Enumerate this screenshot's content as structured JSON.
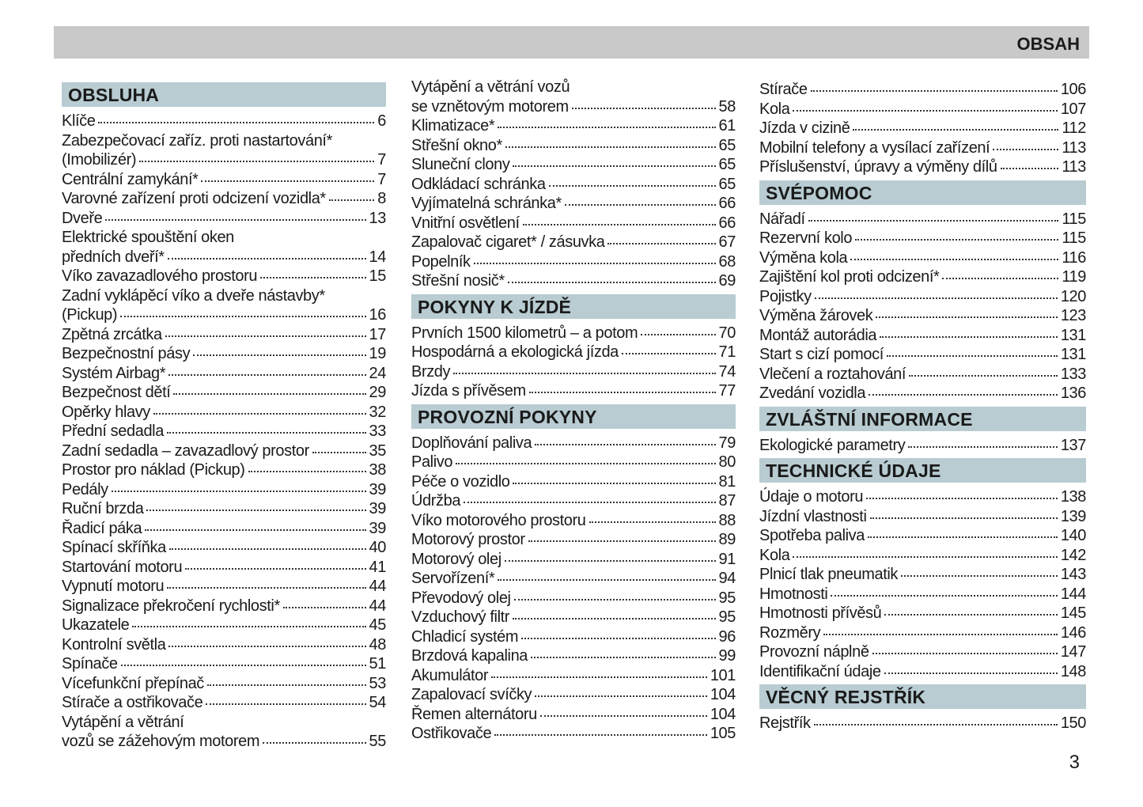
{
  "header": {
    "title": "OBSAH",
    "bar_color": "#c9c9c9",
    "heading_color": "#b8ccd2"
  },
  "page_number": "3",
  "columns": [
    [
      {
        "heading": "OBSLUHA",
        "items": [
          {
            "title": "Klíče",
            "page": "6"
          },
          {
            "pre": "Zabezpečovací zaříz. proti nastartování*",
            "title": "(Imobilizér)",
            "page": "7"
          },
          {
            "title": "Centrální zamykání*",
            "page": "7"
          },
          {
            "title": "Varovné zařízení proti odcizení vozidla*",
            "page": "8"
          },
          {
            "title": "Dveře",
            "page": "13"
          },
          {
            "pre": "Elektrické spouštění oken",
            "title": "předních dveří*",
            "page": "14"
          },
          {
            "title": "Víko zavazadlového prostoru",
            "page": "15"
          },
          {
            "pre": "Zadní vyklápěcí víko a dveře nástavby*",
            "title": "(Pickup)",
            "page": "16"
          },
          {
            "title": "Zpětná zrcátka",
            "page": "17"
          },
          {
            "title": "Bezpečnostní pásy",
            "page": "19"
          },
          {
            "title": "Systém Airbag*",
            "page": "24"
          },
          {
            "title": "Bezpečnost dětí",
            "page": "29"
          },
          {
            "title": "Opěrky hlavy",
            "page": "32"
          },
          {
            "title": "Přední sedadla",
            "page": "33"
          },
          {
            "title": "Zadní sedadla – zavazadlový prostor",
            "page": "35"
          },
          {
            "title": "Prostor pro náklad (Pickup)",
            "page": "38"
          },
          {
            "title": "Pedály",
            "page": "39"
          },
          {
            "title": "Ruční brzda",
            "page": "39"
          },
          {
            "title": "Řadicí páka",
            "page": "39"
          },
          {
            "title": "Spínací skříňka",
            "page": "40"
          },
          {
            "title": "Startování motoru",
            "page": "41"
          },
          {
            "title": "Vypnutí motoru",
            "page": "44"
          },
          {
            "title": "Signalizace překročení rychlosti*",
            "page": "44"
          },
          {
            "title": "Ukazatele",
            "page": "45"
          },
          {
            "title": "Kontrolní světla",
            "page": "48"
          },
          {
            "title": "Spínače",
            "page": "51"
          },
          {
            "title": "Vícefunkční přepínač",
            "page": "53"
          },
          {
            "title": "Stírače a ostřikovače",
            "page": "54"
          },
          {
            "pre": "Vytápění a větrání",
            "title": "vozů se zážehovým motorem",
            "page": "55"
          }
        ]
      }
    ],
    [
      {
        "items": [
          {
            "pre": "Vytápění a větrání vozů",
            "title": "se vznětovým motorem",
            "page": "58"
          },
          {
            "title": "Klimatizace*",
            "page": "61"
          },
          {
            "title": "Střešní okno*",
            "page": "65"
          },
          {
            "title": "Sluneční clony",
            "page": "65"
          },
          {
            "title": "Odkládací schránka",
            "page": "65"
          },
          {
            "title": "Vyjímatelná schránka*",
            "page": "66"
          },
          {
            "title": "Vnitřní osvětlení",
            "page": "66"
          },
          {
            "title": "Zapalovač cigaret* / zásuvka",
            "page": "67"
          },
          {
            "title": "Popelník",
            "page": "68"
          },
          {
            "title": "Střešní nosič*",
            "page": "69"
          }
        ]
      },
      {
        "heading": "POKYNY K JÍZDĚ",
        "items": [
          {
            "title": "Prvních 1500 kilometrů – a potom",
            "page": "70"
          },
          {
            "title": "Hospodárná a ekologická jízda",
            "page": "71"
          },
          {
            "title": "Brzdy",
            "page": "74"
          },
          {
            "title": "Jízda s přívěsem",
            "page": "77"
          }
        ]
      },
      {
        "heading": "PROVOZNÍ POKYNY",
        "items": [
          {
            "title": "Doplňování paliva",
            "page": "79"
          },
          {
            "title": "Palivo",
            "page": "80"
          },
          {
            "title": "Péče o vozidlo",
            "page": "81"
          },
          {
            "title": "Údržba",
            "page": "87"
          },
          {
            "title": "Víko motorového prostoru",
            "page": "88"
          },
          {
            "title": "Motorový prostor",
            "page": "89"
          },
          {
            "title": "Motorový olej",
            "page": "91"
          },
          {
            "title": "Servořízení*",
            "page": "94"
          },
          {
            "title": "Převodový olej",
            "page": "95"
          },
          {
            "title": "Vzduchový filtr",
            "page": "95"
          },
          {
            "title": "Chladicí systém",
            "page": "96"
          },
          {
            "title": "Brzdová kapalina",
            "page": "99"
          },
          {
            "title": "Akumulátor",
            "page": "101"
          },
          {
            "title": "Zapalovací svíčky",
            "page": "104"
          },
          {
            "title": "Řemen alternátoru",
            "page": "104"
          },
          {
            "title": "Ostřikovače",
            "page": "105"
          }
        ]
      }
    ],
    [
      {
        "items": [
          {
            "title": "Stírače",
            "page": "106"
          },
          {
            "title": "Kola",
            "page": "107"
          },
          {
            "title": "Jízda v cizině",
            "page": "112"
          },
          {
            "title": "Mobilní telefony a vysílací zařízení",
            "page": "113"
          },
          {
            "title": "Příslušenství, úpravy a výměny dílů",
            "page": "113"
          }
        ]
      },
      {
        "heading": "SVÉPOMOC",
        "items": [
          {
            "title": "Nářadí",
            "page": "115"
          },
          {
            "title": "Rezervní kolo",
            "page": "115"
          },
          {
            "title": "Výměna kola",
            "page": "116"
          },
          {
            "title": "Zajištění kol proti odcizení*",
            "page": "119"
          },
          {
            "title": "Pojistky",
            "page": "120"
          },
          {
            "title": "Výměna žárovek",
            "page": "123"
          },
          {
            "title": "Montáž autorádia",
            "page": "131"
          },
          {
            "title": "Start s cizí pomocí",
            "page": "131"
          },
          {
            "title": "Vlečení a roztahování",
            "page": "133"
          },
          {
            "title": "Zvedání vozidla",
            "page": "136"
          }
        ]
      },
      {
        "heading": "ZVLÁŠTNÍ INFORMACE",
        "items": [
          {
            "title": "Ekologické parametry",
            "page": "137"
          }
        ]
      },
      {
        "heading": "TECHNICKÉ ÚDAJE",
        "items": [
          {
            "title": "Údaje o motoru",
            "page": "138"
          },
          {
            "title": "Jízdní vlastnosti",
            "page": "139"
          },
          {
            "title": "Spotřeba paliva",
            "page": "140"
          },
          {
            "title": "Kola",
            "page": "142"
          },
          {
            "title": "Plnicí tlak pneumatik",
            "page": "143"
          },
          {
            "title": "Hmotnosti",
            "page": "144"
          },
          {
            "title": "Hmotnosti přívěsů",
            "page": "145"
          },
          {
            "title": "Rozměry",
            "page": "146"
          },
          {
            "title": "Provozní náplně",
            "page": "147"
          },
          {
            "title": "Identifikační údaje",
            "page": "148"
          }
        ]
      },
      {
        "heading": "VĚCNÝ REJSTŘÍK",
        "items": [
          {
            "title": "Rejstřík",
            "page": "150"
          }
        ]
      }
    ]
  ]
}
